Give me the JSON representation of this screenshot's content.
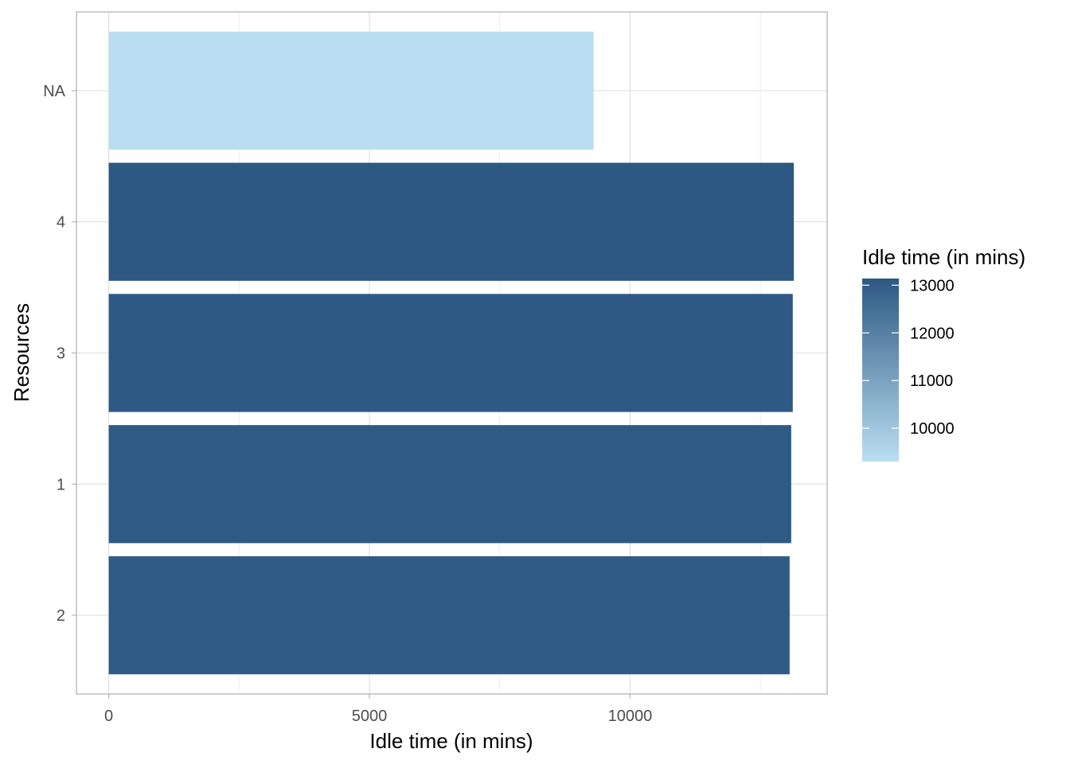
{
  "chart_data": {
    "type": "bar",
    "orientation": "horizontal",
    "title": "",
    "xlabel": "Idle time (in mins)",
    "ylabel": "Resources",
    "categories": [
      "2",
      "1",
      "3",
      "4",
      "NA"
    ],
    "values": [
      13060,
      13090,
      13120,
      13140,
      9300
    ],
    "xlim": [
      -620,
      13780
    ],
    "x_ticks": [
      0,
      5000,
      10000
    ],
    "x_tick_labels": [
      "0",
      "5000",
      "10000"
    ],
    "grid": true,
    "legend": {
      "title": "Idle time (in mins)",
      "type": "colorbar",
      "placement": "right",
      "range": [
        9300,
        13140
      ],
      "breaks": [
        10000,
        11000,
        12000,
        13000
      ],
      "break_labels": [
        "10000",
        "11000",
        "12000",
        "13000"
      ],
      "low_color": "#BADEF1",
      "high_color": "#2C5883"
    }
  }
}
